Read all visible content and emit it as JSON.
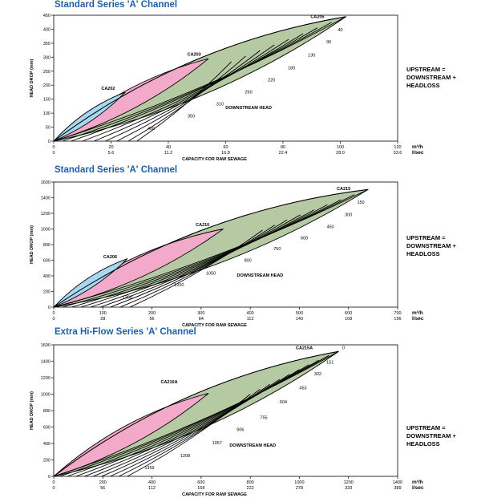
{
  "equation": {
    "line1": "UPSTREAM =",
    "line2": "DOWNSTREAM +",
    "line3": "HEADLOSS"
  },
  "colors": {
    "title": "#1f5fa8",
    "blue_zone": "#a8d8ef",
    "pink_zone": "#f3a9c9",
    "green_zone": "#b5c9a3",
    "lines": "#000000"
  },
  "chart_data": [
    {
      "type": "line",
      "title": "Standard Series 'A' Channel",
      "ylabel": "HEAD DROP (mm)",
      "xlabel": "CAPACITY FOR RAW SEWAGE",
      "x_unit": "m³/h",
      "x2_unit": "l/sec",
      "xlim": [
        0,
        120
      ],
      "ylim": [
        0,
        450
      ],
      "x_ticks": [
        "0",
        "20",
        "40",
        "60",
        "80",
        "100",
        "120"
      ],
      "x2_ticks": [
        "0",
        "5.6",
        "11.2",
        "16.8",
        "22.4",
        "28.0",
        "33.6"
      ],
      "y_ticks": [
        "0",
        "50",
        "100",
        "150",
        "200",
        "250",
        "300",
        "350",
        "400",
        "450"
      ],
      "zones": [
        {
          "name": "CA202",
          "color": "#a8d8ef",
          "peak": [
            25,
            175
          ],
          "label_pos": [
            19,
            183
          ]
        },
        {
          "name": "CA203",
          "color": "#f3a9c9",
          "peak": [
            54,
            295
          ],
          "label_pos": [
            49,
            305
          ]
        },
        {
          "name": "CA205",
          "color": "#b5c9a3",
          "peak": [
            102,
            445
          ],
          "label_pos": [
            92,
            440
          ]
        }
      ],
      "downstream_lines": [
        {
          "label": "40",
          "value": 40,
          "start": [
            0,
            0
          ],
          "end": [
            102,
            445
          ],
          "label_pos": [
            100,
            392
          ]
        },
        {
          "label": "90",
          "value": 90,
          "start": [
            3,
            0
          ],
          "end": [
            97,
            425
          ],
          "label_pos": [
            96,
            349
          ]
        },
        {
          "label": "130",
          "value": 130,
          "start": [
            6,
            0
          ],
          "end": [
            92,
            405
          ],
          "label_pos": [
            90,
            303
          ]
        },
        {
          "label": "180",
          "value": 180,
          "start": [
            10,
            0
          ],
          "end": [
            87,
            384
          ],
          "label_pos": [
            83,
            256
          ]
        },
        {
          "label": "220",
          "value": 220,
          "start": [
            14,
            0
          ],
          "end": [
            82,
            364
          ],
          "label_pos": [
            76,
            214
          ]
        },
        {
          "label": "260",
          "value": 260,
          "start": [
            18,
            0
          ],
          "end": [
            77,
            344
          ],
          "label_pos": [
            68,
            171
          ]
        },
        {
          "label": "310",
          "value": 310,
          "start": [
            22,
            0
          ],
          "end": [
            72,
            324
          ],
          "label_pos": [
            58,
            128
          ]
        },
        {
          "label": "350",
          "value": 350,
          "start": [
            26,
            0
          ],
          "end": [
            67,
            304
          ],
          "label_pos": [
            48,
            85
          ]
        },
        {
          "label": "400",
          "value": 400,
          "start": [
            29,
            0
          ],
          "end": [
            62,
            284
          ],
          "label_pos": [
            34,
            40
          ]
        }
      ],
      "annotations": [
        {
          "text": "DOWNSTREAM HEAD",
          "pos": [
            68,
            115
          ]
        }
      ]
    },
    {
      "type": "line",
      "title": "Standard Series 'A' Channel",
      "ylabel": "HEAD DROP (mm)",
      "xlabel": "CAPACITY FOR RAW SEWAGE",
      "x_unit": "m³/h",
      "x2_unit": "l/sec",
      "xlim": [
        0,
        700
      ],
      "ylim": [
        0,
        1600
      ],
      "x_ticks": [
        "0",
        "100",
        "200",
        "300",
        "400",
        "500",
        "600",
        "700"
      ],
      "x2_ticks": [
        "0",
        "28",
        "56",
        "84",
        "112",
        "140",
        "168",
        "196"
      ],
      "y_ticks": [
        "0",
        "200",
        "400",
        "600",
        "800",
        "1000",
        "1200",
        "1400",
        "1600"
      ],
      "zones": [
        {
          "name": "CA206",
          "color": "#a8d8ef",
          "peak": [
            150,
            620
          ],
          "label_pos": [
            115,
            625
          ]
        },
        {
          "name": "CA210",
          "color": "#f3a9c9",
          "peak": [
            345,
            1000
          ],
          "label_pos": [
            303,
            1035
          ]
        },
        {
          "name": "CA215",
          "color": "#b5c9a3",
          "peak": [
            640,
            1505
          ],
          "label_pos": [
            590,
            1500
          ]
        }
      ],
      "downstream_lines": [
        {
          "label": "150",
          "value": 150,
          "start": [
            0,
            0
          ],
          "end": [
            640,
            1505
          ],
          "label_pos": [
            625,
            1325
          ]
        },
        {
          "label": "300",
          "value": 300,
          "start": [
            18,
            0
          ],
          "end": [
            612,
            1440
          ],
          "label_pos": [
            600,
            1165
          ]
        },
        {
          "label": "450",
          "value": 450,
          "start": [
            36,
            0
          ],
          "end": [
            585,
            1375
          ],
          "label_pos": [
            563,
            1010
          ]
        },
        {
          "label": "600",
          "value": 600,
          "start": [
            55,
            0
          ],
          "end": [
            557,
            1310
          ],
          "label_pos": [
            510,
            865
          ]
        },
        {
          "label": "750",
          "value": 750,
          "start": [
            75,
            0
          ],
          "end": [
            530,
            1245
          ],
          "label_pos": [
            455,
            730
          ]
        },
        {
          "label": "900",
          "value": 900,
          "start": [
            95,
            0
          ],
          "end": [
            502,
            1180
          ],
          "label_pos": [
            395,
            580
          ]
        },
        {
          "label": "1050",
          "value": 1050,
          "start": [
            115,
            0
          ],
          "end": [
            475,
            1115
          ],
          "label_pos": [
            320,
            415
          ]
        },
        {
          "label": "1200",
          "value": 1200,
          "start": [
            135,
            0
          ],
          "end": [
            450,
            1050
          ],
          "label_pos": [
            255,
            265
          ]
        },
        {
          "label": "1350",
          "value": 1350,
          "start": [
            155,
            0
          ],
          "end": [
            425,
            985
          ],
          "label_pos": [
            150,
            110
          ]
        }
      ],
      "annotations": [
        {
          "text": "DOWNSTREAM HEAD",
          "pos": [
            420,
            390
          ]
        }
      ]
    },
    {
      "type": "line",
      "title": "Extra Hi-Flow Series 'A' Channel",
      "ylabel": "HEAD DROP (mm)",
      "xlabel": "CAPACITY FOR RAW SEWAGE",
      "x_unit": "m³/h",
      "x2_unit": "l/sec",
      "xlim": [
        0,
        1400
      ],
      "ylim": [
        0,
        1600
      ],
      "x_ticks": [
        "0",
        "200",
        "400",
        "600",
        "800",
        "1000",
        "1200",
        "1400"
      ],
      "x2_ticks": [
        "0",
        "56",
        "112",
        "168",
        "222",
        "278",
        "333",
        "389"
      ],
      "y_ticks": [
        "0",
        "200",
        "400",
        "600",
        "800",
        "1000",
        "1200",
        "1400",
        "1600"
      ],
      "zones": [
        {
          "name": "CA210A",
          "color": "#f3a9c9",
          "peak": [
            630,
            1010
          ],
          "label_pos": [
            470,
            1130
          ]
        },
        {
          "name": "CA215A",
          "color": "#b5c9a3",
          "peak": [
            1160,
            1520
          ],
          "label_pos": [
            1020,
            1545
          ]
        }
      ],
      "downstream_lines": [
        {
          "label": "0",
          "value": 0,
          "start": [
            0,
            0
          ],
          "end": [
            1160,
            1520
          ],
          "label_pos": [
            1180,
            1545
          ]
        },
        {
          "label": "151",
          "value": 151,
          "start": [
            25,
            0
          ],
          "end": [
            1120,
            1470
          ],
          "label_pos": [
            1125,
            1370
          ]
        },
        {
          "label": "302",
          "value": 302,
          "start": [
            55,
            0
          ],
          "end": [
            1080,
            1415
          ],
          "label_pos": [
            1075,
            1230
          ]
        },
        {
          "label": "453",
          "value": 453,
          "start": [
            90,
            0
          ],
          "end": [
            1040,
            1360
          ],
          "label_pos": [
            1015,
            1060
          ]
        },
        {
          "label": "604",
          "value": 604,
          "start": [
            125,
            0
          ],
          "end": [
            1000,
            1300
          ],
          "label_pos": [
            935,
            890
          ]
        },
        {
          "label": "755",
          "value": 755,
          "start": [
            160,
            0
          ],
          "end": [
            960,
            1240
          ],
          "label_pos": [
            855,
            700
          ]
        },
        {
          "label": "906",
          "value": 906,
          "start": [
            195,
            0
          ],
          "end": [
            920,
            1180
          ],
          "label_pos": [
            760,
            550
          ]
        },
        {
          "label": "1057",
          "value": 1057,
          "start": [
            230,
            0
          ],
          "end": [
            880,
            1120
          ],
          "label_pos": [
            665,
            390
          ]
        },
        {
          "label": "1208",
          "value": 1208,
          "start": [
            265,
            0
          ],
          "end": [
            840,
            1060
          ],
          "label_pos": [
            535,
            235
          ]
        },
        {
          "label": "1359",
          "value": 1359,
          "start": [
            300,
            0
          ],
          "end": [
            800,
            1000
          ],
          "label_pos": [
            390,
            90
          ]
        }
      ],
      "annotations": [
        {
          "text": "DOWNSTREAM HEAD",
          "pos": [
            810,
            360
          ]
        }
      ]
    }
  ]
}
